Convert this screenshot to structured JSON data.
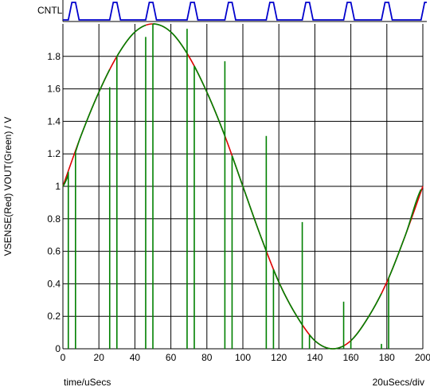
{
  "chart_data": [
    {
      "type": "line",
      "digital_label": "CNTL",
      "transitions_x": [
        3,
        7,
        26,
        30,
        46,
        50,
        69,
        73,
        90,
        94,
        113,
        117,
        133,
        137,
        156,
        160,
        177,
        181,
        199
      ],
      "initial_level": 0,
      "color": "#0000cc"
    },
    {
      "type": "line",
      "ylabel": "VSENSE(Red) VOUT(Green) / V",
      "xlabel": "time/uSecs",
      "scale_label": "20uSecs/div",
      "xlim": [
        0,
        200
      ],
      "ylim": [
        0,
        2.0
      ],
      "xticks": [
        0,
        20,
        40,
        60,
        80,
        100,
        120,
        140,
        160,
        180,
        200
      ],
      "yticks": [
        0,
        0.2,
        0.4,
        0.6,
        0.8,
        1,
        1.2,
        1.4,
        1.6,
        1.8
      ],
      "grid": true,
      "series": [
        {
          "name": "VSENSE",
          "color": "#dd0000",
          "x": [
            0,
            10,
            20,
            30,
            40,
            50,
            60,
            70,
            80,
            90,
            100,
            110,
            120,
            130,
            140,
            150,
            160,
            170,
            180,
            190,
            200
          ],
          "y": [
            1.0,
            1.31,
            1.58,
            1.8,
            1.95,
            2.0,
            1.95,
            1.8,
            1.58,
            1.31,
            1.0,
            0.69,
            0.41,
            0.2,
            0.05,
            0.0,
            0.05,
            0.2,
            0.41,
            0.69,
            1.0
          ]
        },
        {
          "name": "VOUT",
          "color": "#008000",
          "type": "sample_hold",
          "track_intervals": [
            [
              0,
              3
            ],
            [
              7,
              26
            ],
            [
              30,
              46
            ],
            [
              50,
              69
            ],
            [
              73,
              90
            ],
            [
              94,
              113
            ],
            [
              117,
              133
            ],
            [
              137,
              156
            ],
            [
              160,
              177
            ],
            [
              181,
              199
            ]
          ],
          "hold_levels": [
            1.09,
            1.61,
            1.92,
            1.97,
            1.77,
            1.31,
            0.78,
            0.29,
            0.03
          ]
        }
      ]
    }
  ]
}
